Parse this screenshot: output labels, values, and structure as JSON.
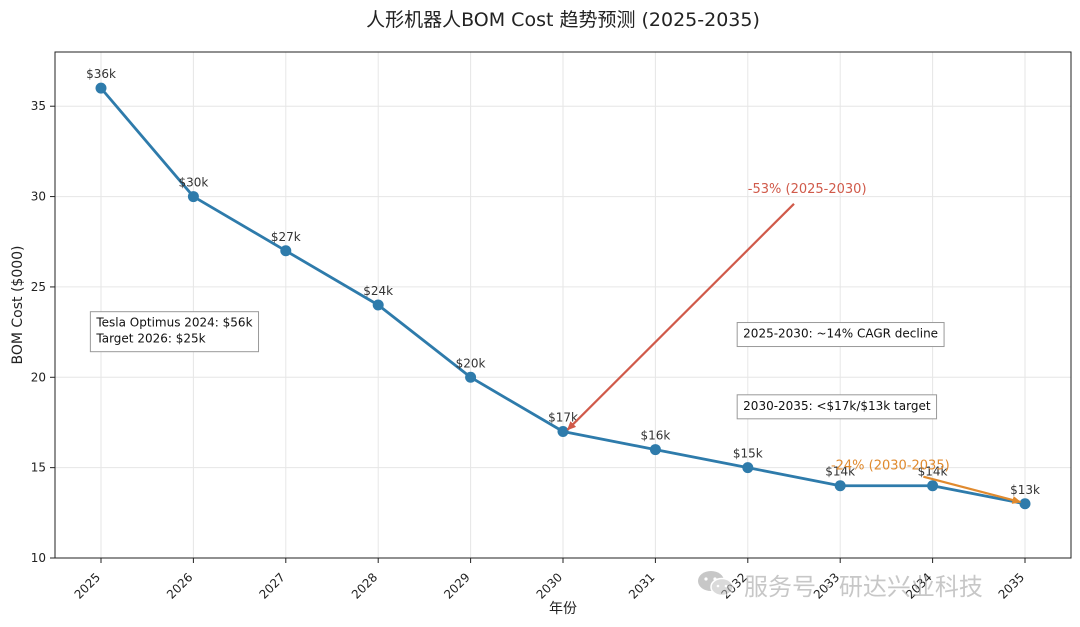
{
  "chart_data": {
    "type": "line",
    "title": "人形机器人BOM Cost 趋势预测 (2025-2035)",
    "xlabel": "年份",
    "ylabel": "BOM Cost ($000)",
    "categories": [
      "2025",
      "2026",
      "2027",
      "2028",
      "2029",
      "2030",
      "2031",
      "2032",
      "2033",
      "2034",
      "2035"
    ],
    "series": [
      {
        "values": [
          36,
          30,
          27,
          24,
          20,
          17,
          16,
          15,
          14,
          14,
          13
        ],
        "color": "#2e7bab"
      }
    ],
    "data_labels": [
      "$36k",
      "$30k",
      "$27k",
      "$24k",
      "$20k",
      "$17k",
      "$16k",
      "$15k",
      "$14k",
      "$14k",
      "$13k"
    ],
    "ylim": [
      10,
      38
    ],
    "yticks": [
      10,
      15,
      20,
      25,
      30,
      35
    ],
    "grid": true,
    "annotations": [
      {
        "text": "-53% (2025-2030)",
        "color": "#d05a4a",
        "text_at": [
          2032,
          30.2
        ],
        "arrow_from": [
          2032.5,
          29.6
        ],
        "arrow_to": [
          2030.05,
          17.1
        ]
      },
      {
        "text": "-24% (2030-2035)",
        "color": "#e08a2e",
        "text_at": [
          2032.9,
          14.9
        ],
        "arrow_from": [
          2033.9,
          14.5
        ],
        "arrow_to": [
          2034.95,
          13.1
        ]
      }
    ],
    "text_boxes": [
      {
        "lines": [
          "Tesla Optimus 2024: $56k",
          "Target 2026: $25k"
        ],
        "at": [
          2024.95,
          22.8
        ]
      },
      {
        "lines": [
          "2025-2030: ~14% CAGR decline"
        ],
        "at": [
          2031.95,
          22.2
        ]
      },
      {
        "lines": [
          "2030-2035: <$17k/$13k target"
        ],
        "at": [
          2031.95,
          18.2
        ]
      }
    ]
  },
  "watermark": {
    "text": "服务号 · 研达兴业科技",
    "icon": "wechat-icon"
  }
}
